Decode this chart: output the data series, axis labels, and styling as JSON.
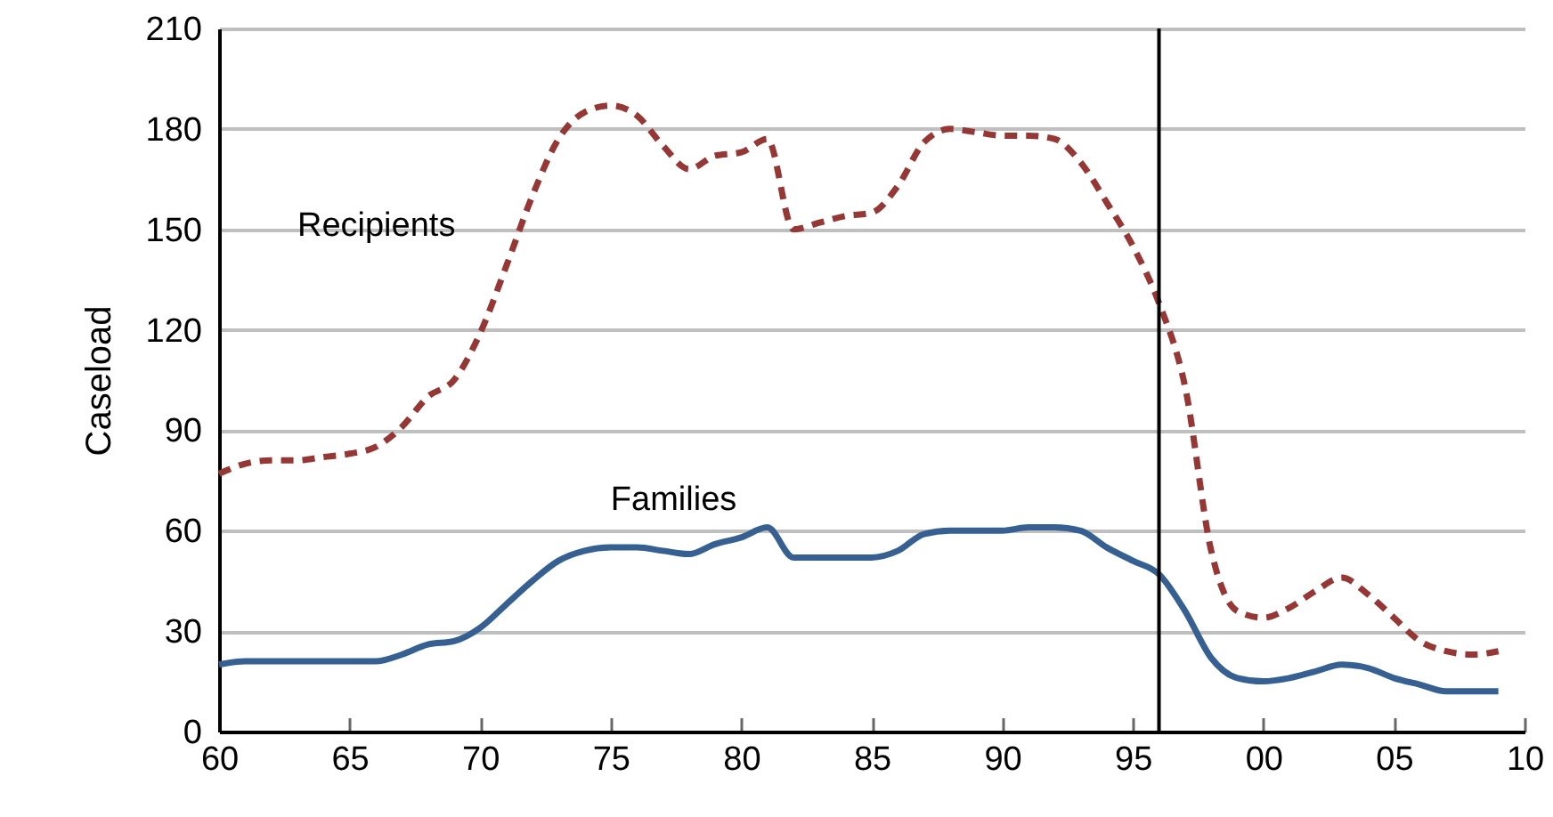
{
  "chart_data": {
    "type": "line",
    "ylabel": "Caseload",
    "x": [
      1960,
      1961,
      1962,
      1963,
      1964,
      1965,
      1966,
      1967,
      1968,
      1969,
      1970,
      1971,
      1972,
      1973,
      1974,
      1975,
      1976,
      1977,
      1978,
      1979,
      1980,
      1981,
      1982,
      1983,
      1984,
      1985,
      1986,
      1987,
      1988,
      1989,
      1990,
      1991,
      1992,
      1993,
      1994,
      1995,
      1996,
      1997,
      1998,
      1999,
      2000,
      2001,
      2002,
      2003,
      2004,
      2005,
      2006,
      2007,
      2008,
      2009
    ],
    "series": [
      {
        "name": "Recipients",
        "color": "#953735",
        "line_style": "dashed",
        "values": [
          77,
          80,
          81,
          81,
          82,
          83,
          85,
          91,
          100,
          105,
          119,
          139,
          160,
          177,
          185,
          187,
          184,
          175,
          168,
          172,
          173,
          177,
          150,
          152,
          154,
          155,
          163,
          176,
          180,
          179,
          178,
          178,
          177,
          170,
          158,
          145,
          128,
          103,
          54,
          36,
          34,
          37,
          42,
          46,
          41,
          34,
          27,
          24,
          23,
          24
        ]
      },
      {
        "name": "Families",
        "color": "#376092",
        "line_style": "solid",
        "values": [
          20,
          21,
          21,
          21,
          21,
          21,
          21,
          23,
          26,
          27,
          31,
          38,
          45,
          51,
          54,
          55,
          55,
          54,
          53,
          56,
          58,
          61,
          52,
          52,
          52,
          52,
          54,
          59,
          60,
          60,
          60,
          61,
          61,
          60,
          55,
          51,
          47,
          36,
          22,
          16,
          15,
          16,
          18,
          20,
          19,
          16,
          14,
          12,
          12,
          12
        ]
      }
    ],
    "xlim": [
      1960,
      2010
    ],
    "xticks": [
      {
        "value": 1960,
        "label": "60"
      },
      {
        "value": 1965,
        "label": "65"
      },
      {
        "value": 1970,
        "label": "70"
      },
      {
        "value": 1975,
        "label": "75"
      },
      {
        "value": 1980,
        "label": "80"
      },
      {
        "value": 1985,
        "label": "85"
      },
      {
        "value": 1990,
        "label": "90"
      },
      {
        "value": 1995,
        "label": "95"
      },
      {
        "value": 2000,
        "label": "00"
      },
      {
        "value": 2005,
        "label": "05"
      },
      {
        "value": 2010,
        "label": "10"
      }
    ],
    "ylim": [
      0,
      210
    ],
    "yticks": [
      0,
      30,
      60,
      90,
      120,
      150,
      180,
      210
    ],
    "grid": "y",
    "legend": false,
    "marker": "none",
    "ref_lines": [
      {
        "axis": "x",
        "value": 1996,
        "color": "#000000"
      }
    ]
  }
}
